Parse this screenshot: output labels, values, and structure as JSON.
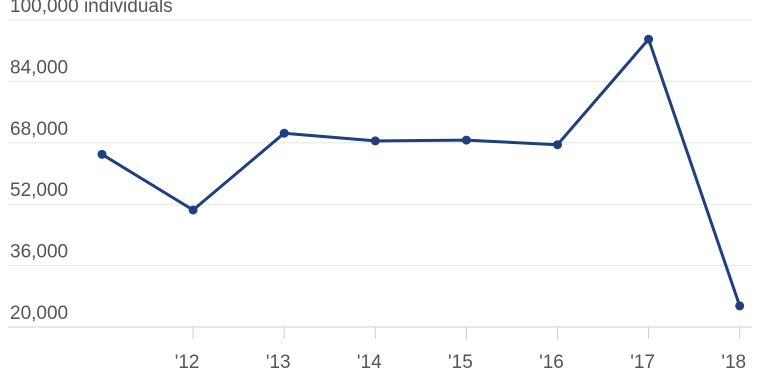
{
  "chart_data": {
    "type": "line",
    "title": "",
    "xlabel": "",
    "ylabel": "",
    "unit_label": "individuals",
    "x": [
      "'11",
      "'12",
      "'13",
      "'14",
      "'15",
      "'16",
      "'17",
      "'18"
    ],
    "x_tick_labels": [
      "'12",
      "'13",
      "'14",
      "'15",
      "'16",
      "'17",
      "'18"
    ],
    "y_ticks": [
      20000,
      36000,
      52000,
      68000,
      84000,
      100000
    ],
    "y_tick_labels": [
      "20,000",
      "36,000",
      "52,000",
      "68,000",
      "84,000",
      "100,000"
    ],
    "ylim": [
      20000,
      100000
    ],
    "grid": true,
    "legend": "none",
    "series": [
      {
        "values": [
          65000,
          50500,
          70500,
          68500,
          68700,
          67500,
          95000,
          25500
        ],
        "color": "#1f3f7f"
      }
    ]
  }
}
